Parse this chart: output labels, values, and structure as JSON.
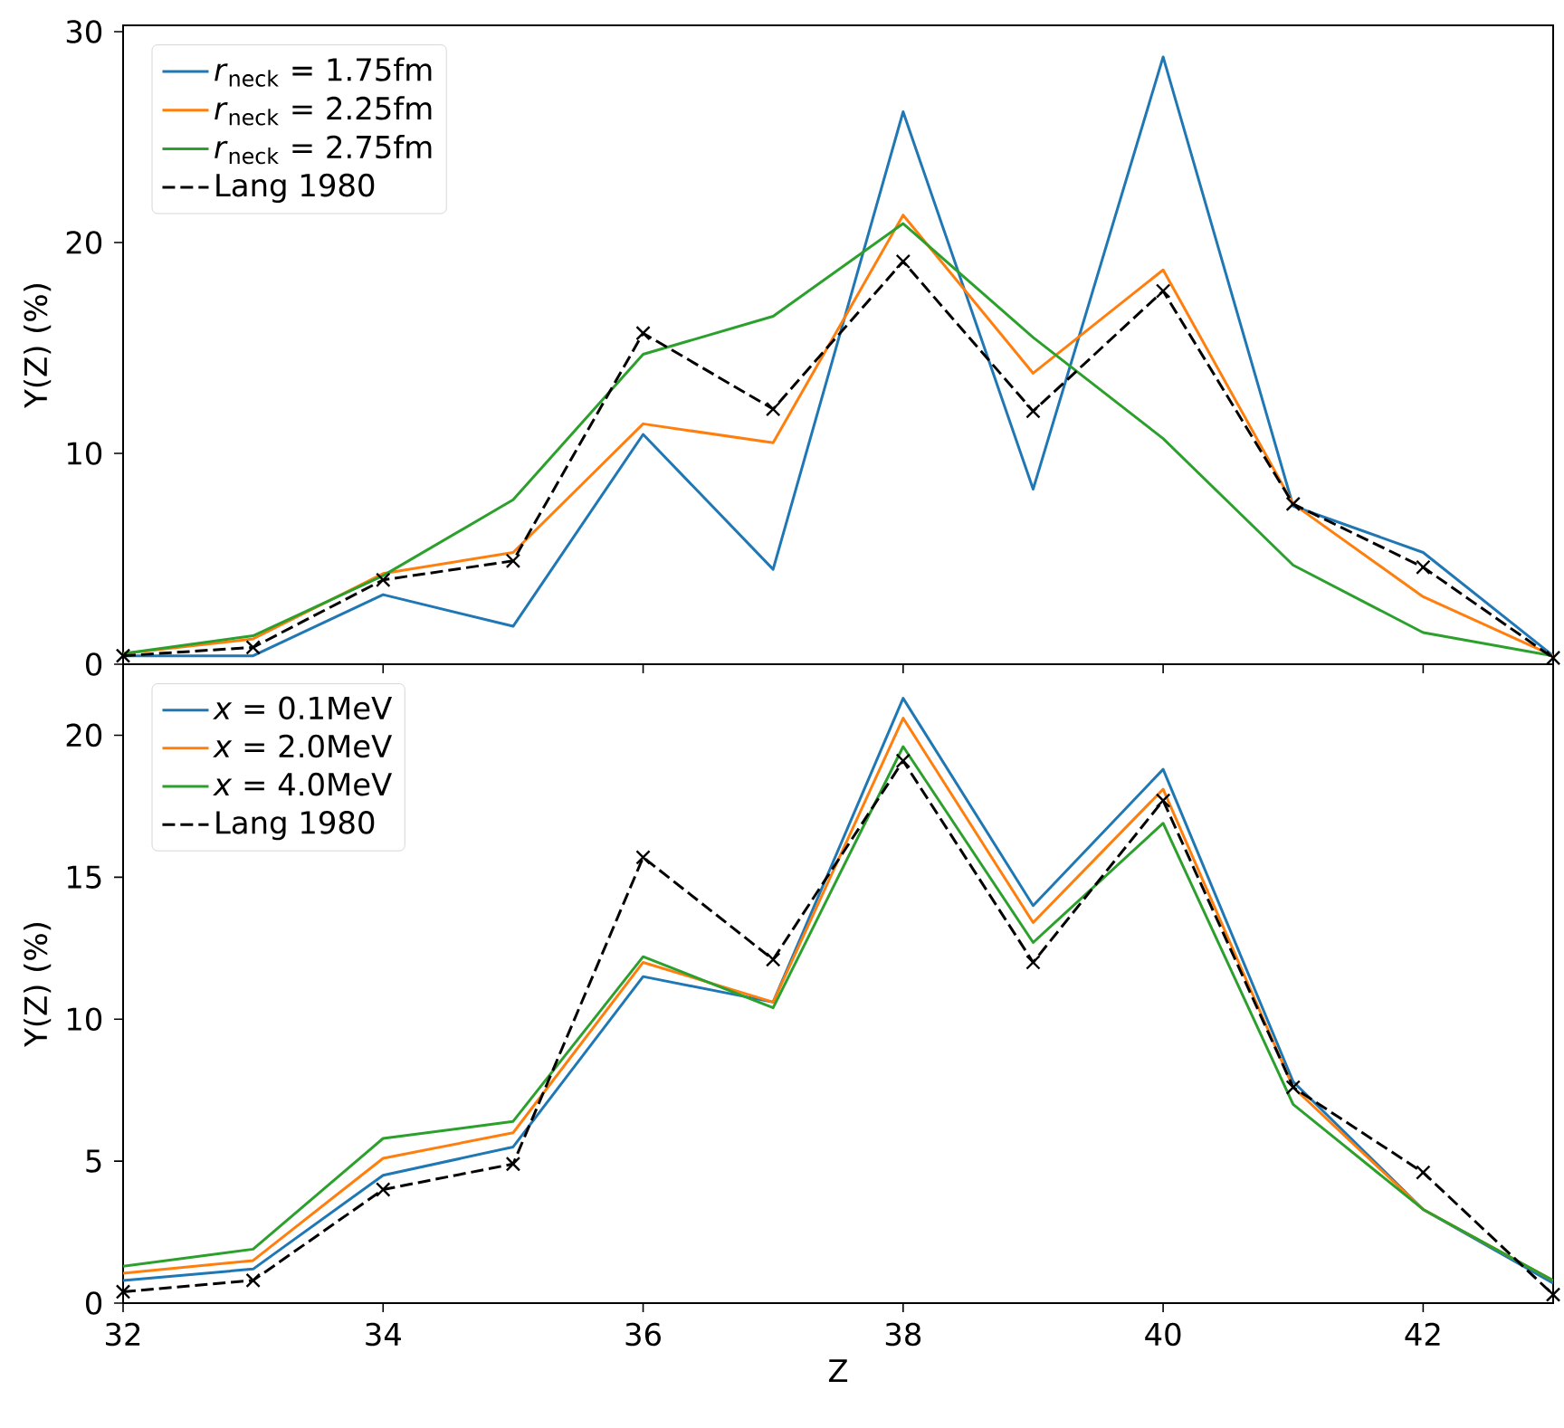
{
  "chart_data": [
    {
      "type": "line",
      "ylabel": "Y(Z) (%)",
      "x": [
        32,
        33,
        34,
        35,
        36,
        37,
        38,
        39,
        40,
        41,
        42,
        43
      ],
      "xlim": [
        32,
        43
      ],
      "xticks": [
        32,
        34,
        36,
        38,
        40,
        42
      ],
      "ylim": [
        0,
        30.3
      ],
      "yticks": [
        0,
        10,
        20,
        30
      ],
      "tick_labels": "y",
      "legend": "top left",
      "grid": false,
      "series": [
        {
          "name": "*r*$_{neck}$ = 1.75fm",
          "color": "#1f77b4",
          "line_style": "solid",
          "marker": "none",
          "values": [
            0.4,
            0.4,
            3.3,
            1.8,
            10.9,
            4.5,
            26.2,
            8.3,
            28.8,
            7.5,
            5.3,
            0.4
          ]
        },
        {
          "name": "*r*$_{neck}$ = 2.25fm",
          "color": "#ff7f0e",
          "line_style": "solid",
          "marker": "none",
          "values": [
            0.5,
            1.2,
            4.3,
            5.3,
            11.4,
            10.5,
            21.3,
            13.8,
            18.7,
            7.6,
            3.2,
            0.4
          ]
        },
        {
          "name": "*r*$_{neck}$ = 2.75fm",
          "color": "#2ca02c",
          "line_style": "solid",
          "marker": "none",
          "values": [
            0.5,
            1.35,
            4.2,
            7.8,
            14.7,
            16.5,
            20.9,
            15.5,
            10.7,
            4.7,
            1.5,
            0.4
          ]
        },
        {
          "name": "Lang 1980",
          "color": "#000000",
          "line_style": "dashed",
          "marker": "cross",
          "values": [
            0.4,
            0.8,
            4.0,
            4.9,
            15.7,
            12.1,
            19.1,
            12.0,
            17.7,
            7.6,
            4.6,
            0.3
          ]
        }
      ]
    },
    {
      "type": "line",
      "xlabel": "Z",
      "ylabel": "Y(Z) (%)",
      "x": [
        32,
        33,
        34,
        35,
        36,
        37,
        38,
        39,
        40,
        41,
        42,
        43
      ],
      "xlim": [
        32,
        43
      ],
      "xticks": [
        32,
        34,
        36,
        38,
        40,
        42
      ],
      "ylim": [
        0,
        22.5
      ],
      "yticks": [
        0,
        5,
        10,
        15,
        20
      ],
      "legend": "top left",
      "grid": false,
      "series": [
        {
          "name": "*x* = 0.1MeV",
          "color": "#1f77b4",
          "line_style": "solid",
          "marker": "none",
          "values": [
            0.8,
            1.2,
            4.5,
            5.5,
            11.5,
            10.6,
            21.3,
            14.0,
            18.8,
            7.8,
            3.3,
            0.7
          ]
        },
        {
          "name": "*x* = 2.0MeV",
          "color": "#ff7f0e",
          "line_style": "solid",
          "marker": "none",
          "values": [
            1.05,
            1.5,
            5.1,
            6.0,
            12.0,
            10.6,
            20.6,
            13.4,
            18.1,
            7.6,
            3.3,
            0.8
          ]
        },
        {
          "name": "*x* = 4.0MeV",
          "color": "#2ca02c",
          "line_style": "solid",
          "marker": "none",
          "values": [
            1.3,
            1.9,
            5.8,
            6.4,
            12.2,
            10.4,
            19.6,
            12.7,
            16.9,
            7.0,
            3.3,
            0.8
          ]
        },
        {
          "name": "Lang 1980",
          "color": "#000000",
          "line_style": "dashed",
          "marker": "cross",
          "values": [
            0.4,
            0.8,
            4.0,
            4.9,
            15.7,
            12.1,
            19.1,
            12.0,
            17.7,
            7.6,
            4.6,
            0.3
          ]
        }
      ]
    }
  ]
}
